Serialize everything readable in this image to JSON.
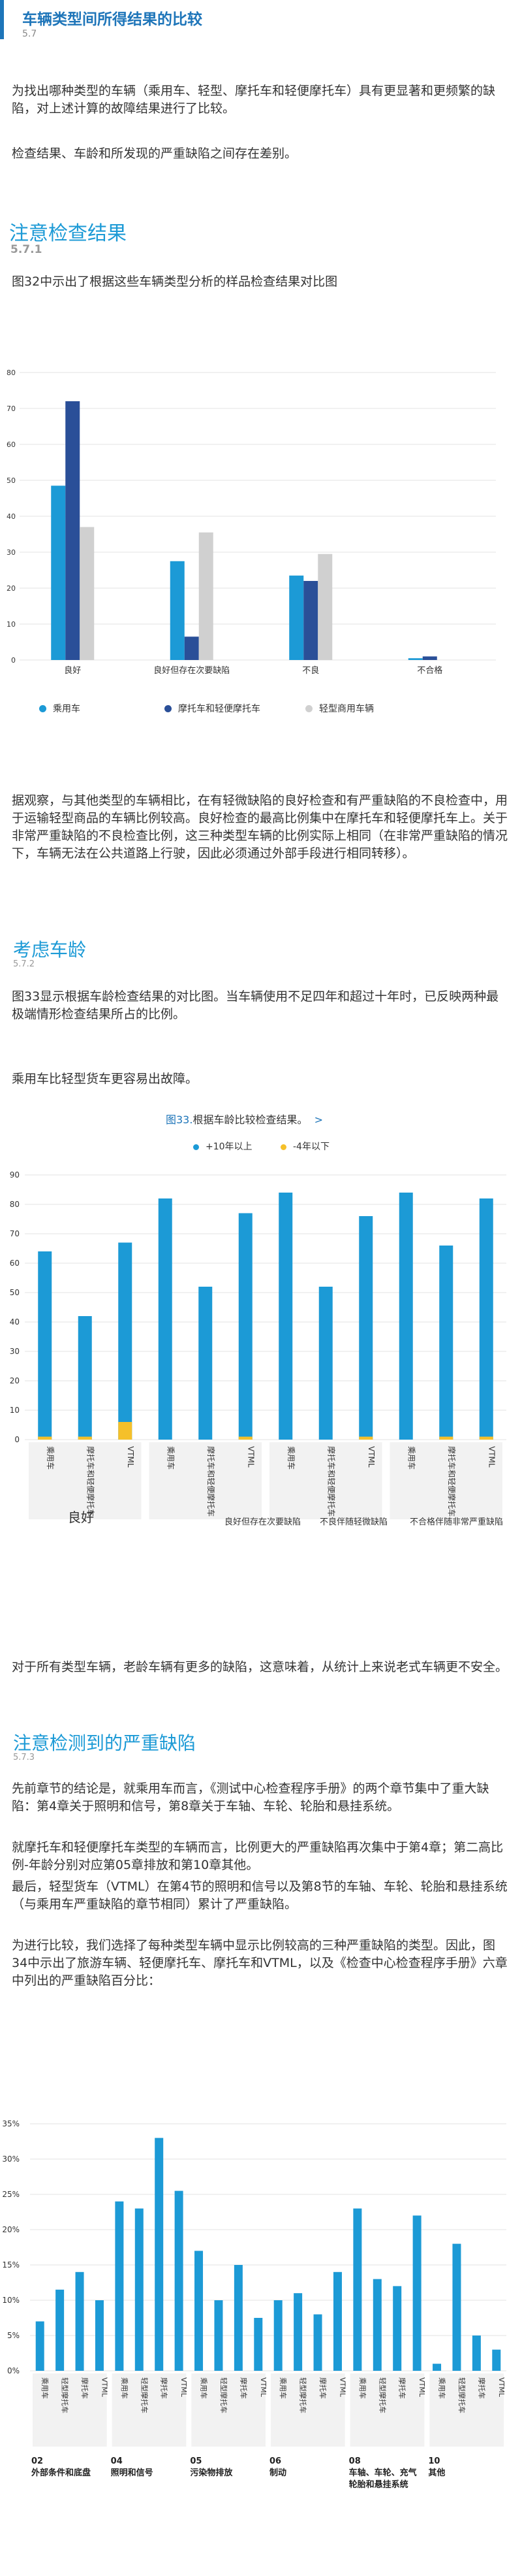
{
  "header": {
    "title": "车辆类型间所得结果的比较",
    "number": "5.7"
  },
  "intro": {
    "p1": "为找出哪种类型的车辆（乘用车、轻型、摩托车和轻便摩托车）具有更显著和更频繁的缺陷，对上述计算的故障结果进行了比较。",
    "p2": "检查结果、车龄和所发现的严重缺陷之间存在差别。"
  },
  "section1": {
    "title": "注意检查结果",
    "number": "5.7.1",
    "intro": "图32中示出了根据这些车辆类型分析的样品检查结果对比图",
    "after": "据观察，与其他类型的车辆相比，在有轻微缺陷的良好检查和有严重缺陷的不良检查中，用于运输轻型商品的车辆比例较高。良好检查的最高比例集中在摩托车和轻便摩托车上。关于非常严重缺陷的不良检查比例，这三种类型车辆的比例实际上相同（在非常严重缺陷的情况下，车辆无法在公共道路上行驶，因此必须通过外部手段进行相同转移）。"
  },
  "section2": {
    "title": "考虑车龄",
    "number": "5.7.2",
    "intro": "图33显示根据车龄检查结果的对比图。当车辆使用不足四年和超过十年时，已反映两种最极端情形检查结果所占的比例。",
    "p2": "乘用车比轻型货车更容易出故障。",
    "after": "对于所有类型车辆，老龄车辆有更多的缺陷，这意味着，从统计上来说老式车辆更不安全。"
  },
  "section3": {
    "title": "注意检测到的严重缺陷",
    "number": "5.7.3",
    "p1": "先前章节的结论是，就乘用车而言，《测试中心检查程序手册》的两个章节集中了重大缺陷：第4章关于照明和信号，第8章关于车轴、车轮、轮胎和悬挂系统。",
    "p2": "就摩托车和轻便摩托车类型的车辆而言，比例更大的严重缺陷再次集中于第4章；第二高比例-年龄分别对应第05章排放和第10章其他。",
    "p3": "最后，轻型货车（VTML）在第4节的照明和信号以及第8节的车轴、车轮、轮胎和悬挂系统（与乘用车严重缺陷的章节相同）累计了严重缺陷。",
    "p4": "为进行比较，我们选择了每种类型车辆中显示比例较高的三种严重缺陷的类型。因此，图34中示出了旅游车辆、轻便摩托车、摩托车和VTML，以及《检查中心检查程序手册》六章中列出的严重缺陷百分比："
  },
  "colors": {
    "blue": "#1c9ad6",
    "navy": "#2a4f98",
    "gray": "#d0d0d0",
    "yellow": "#f5c02a",
    "title_blue": "#1e75b9"
  },
  "chart_data": [
    {
      "type": "bar",
      "categories": [
        "良好",
        "良好但存在次要缺陷",
        "不良",
        "不合格"
      ],
      "series": [
        {
          "name": "乘用车",
          "values": [
            48.5,
            27.5,
            23.5,
            0.5
          ]
        },
        {
          "name": "摩托车和轻便摩托车",
          "values": [
            72,
            6.5,
            22,
            1
          ]
        },
        {
          "name": "轻型商用车辆",
          "values": [
            37,
            35.5,
            29.5,
            0
          ]
        }
      ],
      "ylim": [
        0,
        80
      ],
      "yticks": [
        "0",
        "10",
        "20",
        "30",
        "40",
        "50",
        "60",
        "70",
        "80"
      ],
      "grid": true,
      "legend": "bottom"
    },
    {
      "type": "bar",
      "title": "根据车龄比较检查结果。",
      "title_prefix": "图33.",
      "title_arrow": ">",
      "bar_labels": [
        "乘用车",
        "摩托车和轻便摩托车",
        "VTML",
        "乘用车",
        "摩托车和轻便摩托车",
        "VTML",
        "乘用车",
        "摩托车和轻便摩托车",
        "VTML",
        "乘用车",
        "摩托车和轻便摩托车",
        "VTML"
      ],
      "groups": [
        "良好",
        "良好但存在次要缺陷",
        "不良伴随轻微缺陷",
        "不合格伴随非常严重缺陷"
      ],
      "series": [
        {
          "name": "+10年以上",
          "values": [
            64,
            42,
            67,
            82,
            52,
            77,
            84,
            52,
            76,
            84,
            66,
            82
          ]
        },
        {
          "name": "-4年以下",
          "values": [
            1,
            1,
            6,
            0,
            0,
            1,
            0,
            0,
            1,
            0,
            1,
            1
          ]
        }
      ],
      "ylim": [
        0,
        90
      ],
      "yticks": [
        "0",
        "10",
        "20",
        "30",
        "40",
        "50",
        "60",
        "70",
        "80",
        "90"
      ],
      "grid": true,
      "legend": "top"
    },
    {
      "type": "bar",
      "bar_labels": [
        "乘用车",
        "轻型摩托车",
        "摩托车",
        "VTML",
        "乘用车",
        "轻型摩托车",
        "摩托车",
        "VTML",
        "乘用车",
        "轻型摩托车",
        "摩托车",
        "VTML",
        "乘用车",
        "轻型摩托车",
        "摩托车",
        "VTML",
        "乘用车",
        "轻型摩托车",
        "摩托车",
        "VTML",
        "乘用车",
        "轻型摩托车",
        "摩托车",
        "VTML"
      ],
      "groups": [
        {
          "number": "02",
          "label": "外部条件和底盘"
        },
        {
          "number": "04",
          "label": "照明和信号"
        },
        {
          "number": "05",
          "label": "污染物排放"
        },
        {
          "number": "06",
          "label": "制动"
        },
        {
          "number": "08",
          "label": "车轴、车轮、充气轮胎和悬挂系统"
        },
        {
          "number": "10",
          "label": "其他"
        }
      ],
      "values": [
        7,
        11.5,
        14,
        10,
        24,
        23,
        33,
        25.5,
        17,
        10,
        15,
        7.5,
        10,
        11,
        8,
        14,
        23,
        13,
        12,
        22,
        1,
        18,
        5,
        3
      ],
      "ylim": [
        0,
        35
      ],
      "yticks": [
        "0%",
        "5%",
        "10%",
        "15%",
        "20%",
        "25%",
        "30%",
        "35%"
      ],
      "grid": true
    }
  ]
}
